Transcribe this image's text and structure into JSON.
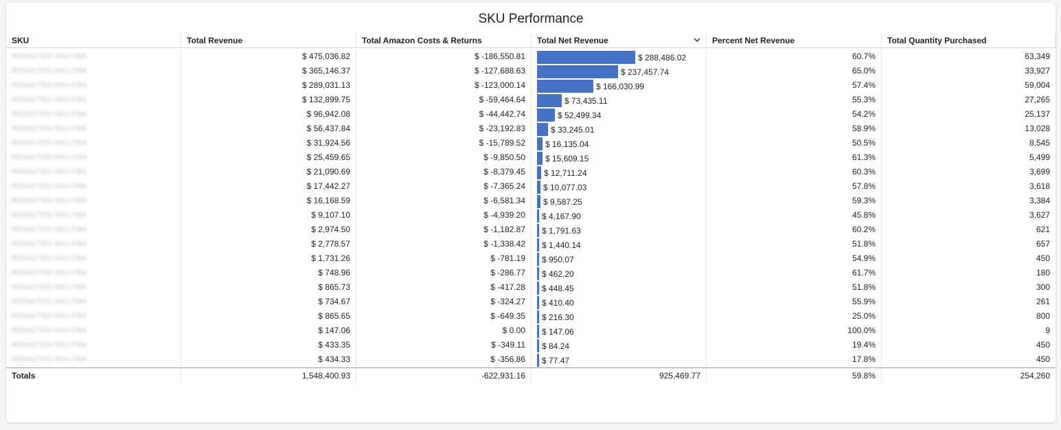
{
  "title": "SKU Performance",
  "colors": {
    "bar": "#4472c4"
  },
  "columns": [
    "SKU",
    "Total Revenue",
    "Total Amazon Costs & Returns",
    "Total Net Revenue",
    "Percent Net Revenue",
    "Total Quantity Purchased"
  ],
  "sort_column_icon": "chevron-down-icon",
  "bar_max": 288486.02,
  "rows": [
    {
      "sku": "REDACTED-SKU-FBA",
      "revenue": "$ 475,036.82",
      "costs": "$ -186,550.81",
      "net": "$ 288,486.02",
      "net_value": 288486.02,
      "pct": "60.7%",
      "qty": "63,349"
    },
    {
      "sku": "REDACTED-SKU-FBA",
      "revenue": "$ 365,146.37",
      "costs": "$ -127,688.63",
      "net": "$ 237,457.74",
      "net_value": 237457.74,
      "pct": "65.0%",
      "qty": "33,927"
    },
    {
      "sku": "REDACTED-SKU-FBA",
      "revenue": "$ 289,031.13",
      "costs": "$ -123,000.14",
      "net": "$ 166,030.99",
      "net_value": 166030.99,
      "pct": "57.4%",
      "qty": "59,004"
    },
    {
      "sku": "REDACTED-SKU-FBA",
      "revenue": "$ 132,899.75",
      "costs": "$ -59,464.64",
      "net": "$ 73,435.11",
      "net_value": 73435.11,
      "pct": "55.3%",
      "qty": "27,265"
    },
    {
      "sku": "REDACTED-SKU-FBA",
      "revenue": "$ 96,942.08",
      "costs": "$ -44,442.74",
      "net": "$ 52,499.34",
      "net_value": 52499.34,
      "pct": "54.2%",
      "qty": "25,137"
    },
    {
      "sku": "REDACTED-SKU-FBA",
      "revenue": "$ 56,437.84",
      "costs": "$ -23,192.83",
      "net": "$ 33,245.01",
      "net_value": 33245.01,
      "pct": "58.9%",
      "qty": "13,028"
    },
    {
      "sku": "REDACTED-SKU-FBA",
      "revenue": "$ 31,924.56",
      "costs": "$ -15,789.52",
      "net": "$ 16,135.04",
      "net_value": 16135.04,
      "pct": "50.5%",
      "qty": "8,545"
    },
    {
      "sku": "REDACTED-SKU-FBA",
      "revenue": "$ 25,459.65",
      "costs": "$ -9,850.50",
      "net": "$ 15,609.15",
      "net_value": 15609.15,
      "pct": "61.3%",
      "qty": "5,499"
    },
    {
      "sku": "REDACTED-SKU-FBA",
      "revenue": "$ 21,090.69",
      "costs": "$ -8,379.45",
      "net": "$ 12,711.24",
      "net_value": 12711.24,
      "pct": "60.3%",
      "qty": "3,699"
    },
    {
      "sku": "REDACTED-SKU-FBA",
      "revenue": "$ 17,442.27",
      "costs": "$ -7,365.24",
      "net": "$ 10,077.03",
      "net_value": 10077.03,
      "pct": "57.8%",
      "qty": "3,618"
    },
    {
      "sku": "REDACTED-SKU-FBA",
      "revenue": "$ 16,168.59",
      "costs": "$ -6,581.34",
      "net": "$ 9,587.25",
      "net_value": 9587.25,
      "pct": "59.3%",
      "qty": "3,384"
    },
    {
      "sku": "REDACTED-SKU-FBA",
      "revenue": "$ 9,107.10",
      "costs": "$ -4,939.20",
      "net": "$ 4,167.90",
      "net_value": 4167.9,
      "pct": "45.8%",
      "qty": "3,627"
    },
    {
      "sku": "REDACTED-SKU-FBA",
      "revenue": "$ 2,974.50",
      "costs": "$ -1,182.87",
      "net": "$ 1,791.63",
      "net_value": 1791.63,
      "pct": "60.2%",
      "qty": "621"
    },
    {
      "sku": "REDACTED-SKU-FBA",
      "revenue": "$ 2,778.57",
      "costs": "$ -1,338.42",
      "net": "$ 1,440.14",
      "net_value": 1440.14,
      "pct": "51.8%",
      "qty": "657"
    },
    {
      "sku": "REDACTED-SKU-FBA",
      "revenue": "$ 1,731.26",
      "costs": "$ -781.19",
      "net": "$ 950.07",
      "net_value": 950.07,
      "pct": "54.9%",
      "qty": "450"
    },
    {
      "sku": "REDACTED-SKU-FBA",
      "revenue": "$ 748.96",
      "costs": "$ -286.77",
      "net": "$ 462.20",
      "net_value": 462.2,
      "pct": "61.7%",
      "qty": "180"
    },
    {
      "sku": "REDACTED-SKU-FBA",
      "revenue": "$ 865.73",
      "costs": "$ -417.28",
      "net": "$ 448.45",
      "net_value": 448.45,
      "pct": "51.8%",
      "qty": "300"
    },
    {
      "sku": "REDACTED-SKU-FBA",
      "revenue": "$ 734.67",
      "costs": "$ -324.27",
      "net": "$ 410.40",
      "net_value": 410.4,
      "pct": "55.9%",
      "qty": "261"
    },
    {
      "sku": "REDACTED-SKU-FBA",
      "revenue": "$ 865.65",
      "costs": "$ -649.35",
      "net": "$ 216.30",
      "net_value": 216.3,
      "pct": "25.0%",
      "qty": "800"
    },
    {
      "sku": "REDACTED-SKU-FBA",
      "revenue": "$ 147.06",
      "costs": "$ 0.00",
      "net": "$ 147.06",
      "net_value": 147.06,
      "pct": "100.0%",
      "qty": "9"
    },
    {
      "sku": "REDACTED-SKU-FBA",
      "revenue": "$ 433.35",
      "costs": "$ -349.11",
      "net": "$ 84.24",
      "net_value": 84.24,
      "pct": "19.4%",
      "qty": "450"
    },
    {
      "sku": "REDACTED-SKU-FBA",
      "revenue": "$ 434.33",
      "costs": "$ -356.86",
      "net": "$ 77.47",
      "net_value": 77.47,
      "pct": "17.8%",
      "qty": "450"
    }
  ],
  "totals": {
    "label": "Totals",
    "revenue": "1,548,400.93",
    "costs": "-622,931.16",
    "net": "925,469.77",
    "pct": "59.8%",
    "qty": "254,260"
  }
}
